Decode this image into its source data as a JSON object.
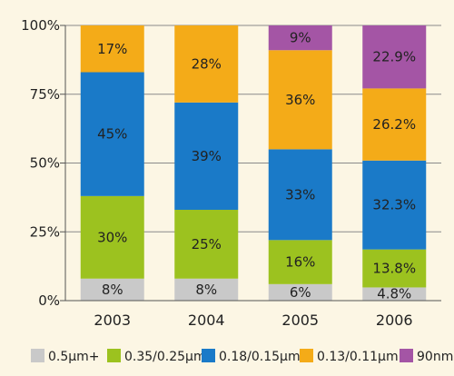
{
  "chart_data": {
    "type": "bar",
    "stacked": true,
    "categories": [
      "2003",
      "2004",
      "2005",
      "2006"
    ],
    "series": [
      {
        "name": "0.5µm+",
        "color": "#c9c9c9",
        "values": [
          8,
          8,
          6,
          4.8
        ],
        "labels": [
          "8%",
          "8%",
          "6%",
          "4.8%"
        ]
      },
      {
        "name": "0.35/0.25µm",
        "color": "#9cc21f",
        "values": [
          30,
          25,
          16,
          13.8
        ],
        "labels": [
          "30%",
          "25%",
          "16%",
          "13.8%"
        ]
      },
      {
        "name": "0.18/0.15µm",
        "color": "#1a7ac8",
        "values": [
          45,
          39,
          33,
          32.3
        ],
        "labels": [
          "45%",
          "39%",
          "33%",
          "32.3%"
        ]
      },
      {
        "name": "0.13/0.11µm",
        "color": "#f4ab18",
        "values": [
          17,
          28,
          36,
          26.2
        ],
        "labels": [
          "17%",
          "28%",
          "36%",
          "26.2%"
        ]
      },
      {
        "name": "90nm",
        "color": "#a455a5",
        "values": [
          0,
          0,
          9,
          22.9
        ],
        "labels": [
          "",
          "",
          "9%",
          "22.9%"
        ]
      }
    ],
    "y_ticks": [
      "0%",
      "25%",
      "50%",
      "75%",
      "100%"
    ],
    "y_tick_values": [
      0,
      25,
      50,
      75,
      100
    ],
    "ylim": [
      0,
      100
    ],
    "grid": true,
    "legend_position": "bottom"
  }
}
